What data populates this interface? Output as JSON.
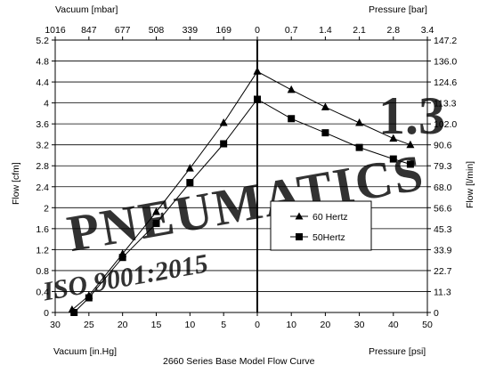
{
  "chart_data": {
    "type": "line",
    "title": "2660 Series Base Model Flow Curve",
    "left_axis": {
      "label": "Flow [cfm]",
      "ticks": [
        "0",
        "0.4",
        "0.8",
        "1.2",
        "1.6",
        "2",
        "2.4",
        "2.8",
        "3.2",
        "3.6",
        "4",
        "4.4",
        "4.8",
        "5.2"
      ],
      "range": [
        0,
        5.2
      ]
    },
    "right_axis": {
      "label": "Flow [l/min]",
      "ticks": [
        "0",
        "11.3",
        "22.7",
        "33.9",
        "45.3",
        "56.6",
        "68.0",
        "79.3",
        "90.6",
        "102.0",
        "113.3",
        "124.6",
        "136.0",
        "147.2"
      ]
    },
    "bottom_vacuum_axis": {
      "label": "Vacuum [in.Hg]",
      "ticks": [
        "30",
        "25",
        "20",
        "15",
        "10",
        "5",
        "0"
      ],
      "range": [
        30,
        0
      ]
    },
    "bottom_pressure_axis": {
      "label": "Pressure [psi]",
      "ticks": [
        "10",
        "20",
        "30",
        "40",
        "50"
      ],
      "range": [
        0,
        50
      ]
    },
    "top_vacuum_axis": {
      "label": "Vacuum [mbar]",
      "ticks": [
        "1016",
        "847",
        "677",
        "508",
        "339",
        "169",
        "0"
      ]
    },
    "top_pressure_axis": {
      "label": "Pressure [bar]",
      "ticks": [
        "0.7",
        "1.4",
        "2.1",
        "2.8",
        "3.4"
      ]
    },
    "series": [
      {
        "name": "60 Hertz",
        "marker": "triangle",
        "vacuum_points": [
          [
            27.5,
            0.05
          ],
          [
            25,
            0.32
          ],
          [
            20,
            1.12
          ],
          [
            15,
            1.92
          ],
          [
            10,
            2.75
          ],
          [
            5,
            3.62
          ],
          [
            0,
            4.6
          ]
        ],
        "pressure_points": [
          [
            0,
            4.6
          ],
          [
            10,
            4.25
          ],
          [
            20,
            3.92
          ],
          [
            30,
            3.62
          ],
          [
            40,
            3.32
          ],
          [
            45,
            3.2
          ]
        ]
      },
      {
        "name": "50Hertz",
        "marker": "square",
        "vacuum_points": [
          [
            27.2,
            0.0
          ],
          [
            25,
            0.28
          ],
          [
            20,
            1.05
          ],
          [
            15,
            1.7
          ],
          [
            10,
            2.48
          ],
          [
            5,
            3.22
          ],
          [
            0,
            4.07
          ]
        ],
        "pressure_points": [
          [
            0,
            4.07
          ],
          [
            10,
            3.7
          ],
          [
            20,
            3.43
          ],
          [
            30,
            3.15
          ],
          [
            40,
            2.93
          ],
          [
            45,
            2.83
          ]
        ]
      }
    ],
    "grid": "horizontal",
    "legend": "center-right",
    "colors": {
      "axis": "#000000",
      "grid": "#000000",
      "series": "#000000"
    }
  },
  "watermark": {
    "text": "PNEUMATICS",
    "number": "1.3",
    "iso": "ISO 9001:2015",
    "color_blue": "#cfe0f3",
    "color_orange": "#fde2cc"
  }
}
